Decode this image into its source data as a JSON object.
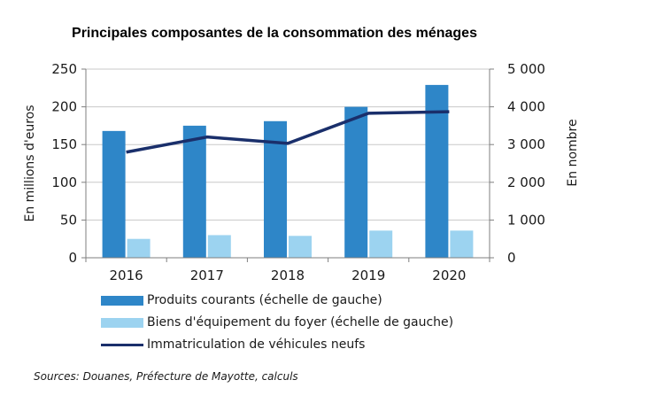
{
  "chart_data": {
    "type": "bar",
    "title": "Principales composantes de la consommation des ménages",
    "categories": [
      "2016",
      "2017",
      "2018",
      "2019",
      "2020"
    ],
    "ylabel_left": "En millions d'euros",
    "ylabel_right": "En nombre",
    "ylim_left": [
      0,
      250
    ],
    "ylim_right": [
      0,
      5000
    ],
    "yticks_left": [
      "0",
      "50",
      "100",
      "150",
      "200",
      "250"
    ],
    "yticks_right": [
      "0",
      "1 000",
      "2 000",
      "3 000",
      "4 000",
      "5 000"
    ],
    "grid": "horizontal",
    "legend_position": "bottom",
    "series": [
      {
        "name": "Produits courants (échelle de gauche)",
        "type": "bar",
        "axis": "left",
        "color": "#2e86c8",
        "values": [
          168,
          175,
          181,
          200,
          229
        ]
      },
      {
        "name": "Biens d'équipement du foyer (échelle de gauche)",
        "type": "bar",
        "axis": "left",
        "color": "#9cd3f0",
        "values": [
          25,
          30,
          29,
          36,
          36
        ]
      },
      {
        "name": "Immatriculation de véhicules neufs",
        "type": "line",
        "axis": "right",
        "color": "#1a2f6b",
        "values": [
          2800,
          3200,
          3030,
          3830,
          3870
        ]
      }
    ]
  },
  "source": "Sources: Douanes, Préfecture de Mayotte, calculs"
}
